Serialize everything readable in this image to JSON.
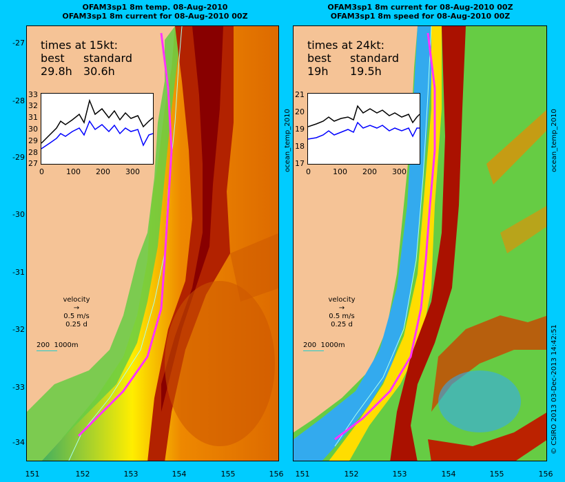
{
  "left_panel": {
    "title_line1": "OFAM3sp1 8m temp. 08-Aug-2010",
    "title_line2": "OFAM3sp1 8m current for 08-Aug-2010 00Z",
    "times_header": "times at 15kt:",
    "best_label": "best",
    "standard_label": "standard",
    "best_value": "29.8h",
    "standard_value": "30.6h",
    "inset": {
      "y_ticks": [
        "33",
        "32",
        "31",
        "30",
        "29",
        "28",
        "27"
      ],
      "x_ticks": [
        "0",
        "100",
        "200",
        "300"
      ]
    },
    "side_label": "ocean_temp_2010"
  },
  "right_panel": {
    "title_line1": "OFAM3sp1 8m current for 08-Aug-2010 00Z",
    "title_line2": "OFAM3sp1 8m speed for 08-Aug-2010 00Z",
    "times_header": "times at 24kt:",
    "best_label": "best",
    "standard_label": "standard",
    "best_value": "19h",
    "standard_value": "19.5h",
    "inset": {
      "y_ticks": [
        "21",
        "20",
        "19",
        "18",
        "17"
      ],
      "x_ticks": [
        "0",
        "100",
        "200",
        "300"
      ]
    },
    "side_label": "ocean_temp_2010"
  },
  "velocity": {
    "label": "velocity",
    "speed": "0.5 m/s",
    "time": "0.25 d"
  },
  "depth_scale": {
    "a": "200",
    "b": "1000m"
  },
  "lat_ticks": [
    "-27",
    "-28",
    "-29",
    "-30",
    "-31",
    "-32",
    "-33",
    "-34"
  ],
  "lon_ticks": [
    "151",
    "152",
    "153",
    "154",
    "155",
    "156"
  ],
  "credit": "© CSIRO 2013   03-Dec-2013 14:42:51",
  "colors": {
    "background": "#00ccff",
    "land": "#f5c396",
    "route": "#ff33ff",
    "best_line": "#000000",
    "standard_line": "#0000ff"
  }
}
